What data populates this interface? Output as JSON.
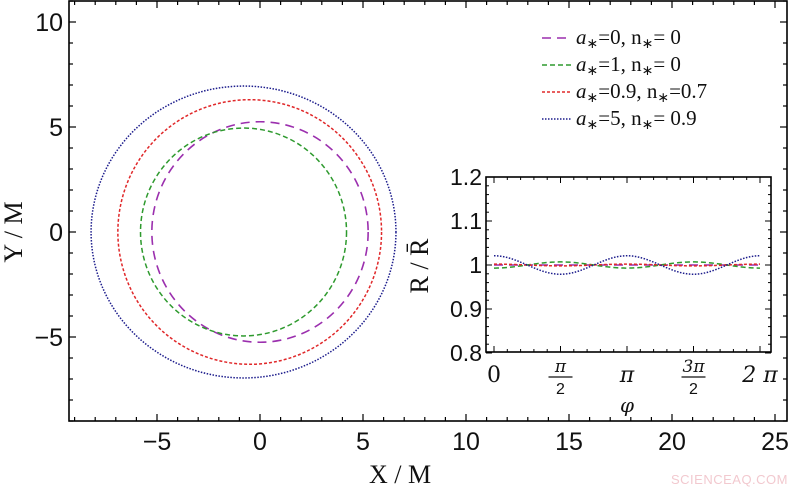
{
  "chart_data": [
    {
      "id": "main",
      "type": "line",
      "subtype": "parametric-closed-curves",
      "title": "",
      "xlabel": "X / M",
      "ylabel": "Y / M",
      "xlim": [
        -9.3,
        25
      ],
      "ylim": [
        -9,
        11
      ],
      "xticks": [
        -5,
        0,
        5,
        10,
        15,
        20,
        25
      ],
      "yticks": [
        -5,
        0,
        5,
        10
      ],
      "grid": false,
      "legend_position": "upper-right",
      "series": [
        {
          "name": "a*=0, n*= 0",
          "legend": {
            "a": "a",
            "a_val": "0",
            "n_val": "0"
          },
          "color": "#9b2fae",
          "dash": "9 6",
          "width": 1.6,
          "cx": 0.0,
          "cy": 0.0,
          "rx": 5.25,
          "ry": 5.25
        },
        {
          "name": "a*=1, n*= 0",
          "legend": {
            "a": "a",
            "a_val": "1",
            "n_val": "0"
          },
          "color": "#2e9a2e",
          "dash": "5 3",
          "width": 1.5,
          "cx": -0.8,
          "cy": 0.0,
          "rx": 5.0,
          "ry": 4.95
        },
        {
          "name": "a*=0.9, n*=0.7",
          "legend": {
            "a": "a",
            "a_val": "0.9",
            "n_val": "0.7"
          },
          "color": "#e0282a",
          "dash": "3 2",
          "width": 1.5,
          "cx": -0.5,
          "cy": 0.0,
          "rx": 6.4,
          "ry": 6.3
        },
        {
          "name": "a*=5, n*= 0.9",
          "legend": {
            "a": "a",
            "a_val": "5",
            "n_val": "0.9"
          },
          "color": "#1c1c8c",
          "dash": "1.5 1.5",
          "width": 1.5,
          "cx": -0.8,
          "cy": 0.0,
          "rx": 7.4,
          "ry": 6.95
        }
      ]
    },
    {
      "id": "inset",
      "type": "line",
      "title": "",
      "xlabel": "φ",
      "ylabel": "R / R̄",
      "xlim": [
        -0.15,
        6.55
      ],
      "ylim": [
        0.8,
        1.2
      ],
      "xticks": [
        0,
        1.5708,
        3.1416,
        4.7124,
        6.2832
      ],
      "xtick_labels": [
        "0",
        "π/2",
        "π",
        "3π/2",
        "2π"
      ],
      "yticks": [
        0.8,
        0.9,
        1.0,
        1.1,
        1.2
      ],
      "ytick_labels": [
        "0.8",
        "0.9",
        "1",
        "1.1",
        "1.2"
      ],
      "grid": false,
      "series": [
        {
          "name": "a*=0, n*= 0",
          "color": "#9b2fae",
          "dash": "9 6",
          "amplitude": 0.0,
          "harmonic": 2,
          "phase": 0,
          "x": [
            0,
            6.2832
          ],
          "y_desc": "≈1.000 constant"
        },
        {
          "name": "a*=1, n*= 0",
          "color": "#2e9a2e",
          "dash": "5 3",
          "amplitude": -0.007,
          "harmonic": 2,
          "phase": 0,
          "y_at_ticks": [
            0.993,
            1.007,
            0.993,
            1.007,
            0.993
          ]
        },
        {
          "name": "a*=0.9, n*=0.7",
          "color": "#e0282a",
          "dash": "3 2",
          "amplitude": 0.002,
          "harmonic": 2,
          "phase": 0,
          "y_at_ticks": [
            1.002,
            0.998,
            1.002,
            0.998,
            1.002
          ]
        },
        {
          "name": "a*=5, n*= 0.9",
          "color": "#1c1c8c",
          "dash": "1.5 1.5",
          "amplitude": 0.021,
          "harmonic": 2,
          "phase": 0,
          "y_at_ticks": [
            1.021,
            0.979,
            1.021,
            0.979,
            1.021
          ]
        }
      ]
    }
  ],
  "labels": {
    "x_axis_title": "X / M",
    "y_axis_title": "Y / M",
    "inset_x_title": "φ",
    "inset_y_title": "R / R̄"
  },
  "legend": {
    "entries": [
      {
        "a_symbol": "a",
        "subscript": "∗",
        "a_val": "=0, n",
        "n_val": "= 0"
      },
      {
        "a_symbol": "a",
        "subscript": "∗",
        "a_val": "=1, n",
        "n_val": "= 0"
      },
      {
        "a_symbol": "a",
        "subscript": "∗",
        "a_val": "=0.9, n",
        "n_val": "=0.7"
      },
      {
        "a_symbol": "a",
        "subscript": "∗",
        "a_val": "=5, n",
        "n_val": "= 0.9"
      }
    ]
  },
  "watermark": "SCIENCEAQ.COM"
}
